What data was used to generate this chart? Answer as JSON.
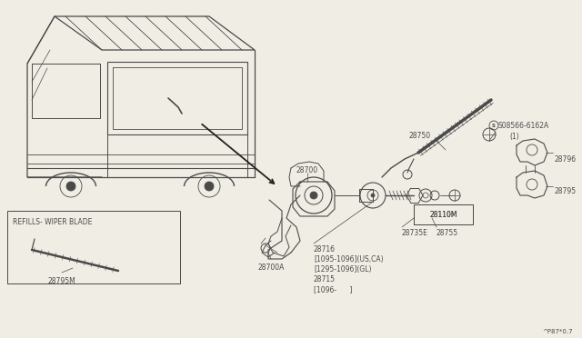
{
  "bg_color": "#f0ede4",
  "line_color": "#4a4a4a",
  "thin_line": 0.5,
  "med_line": 0.8,
  "thick_line": 1.2,
  "diagram_code": "^P87*0.7",
  "fs": 5.5,
  "fs_sm": 4.8,
  "label_28700": "28700",
  "label_28700A": "28700A",
  "label_28716_multi": "28716\n[1095-1096](US,CA)\n[1295-1096](GL)\n28715\n[1096-      ]",
  "label_28750": "28750",
  "label_28110M": "28110M",
  "label_28735E": "28735E",
  "label_28755": "28755",
  "label_28796": "28796",
  "label_28795": "28795",
  "label_28795M": "28795M",
  "label_refills": "REFILLS- WIPER BLADE",
  "label_screw": "S08566-6162A",
  "label_screw2": "(1)"
}
